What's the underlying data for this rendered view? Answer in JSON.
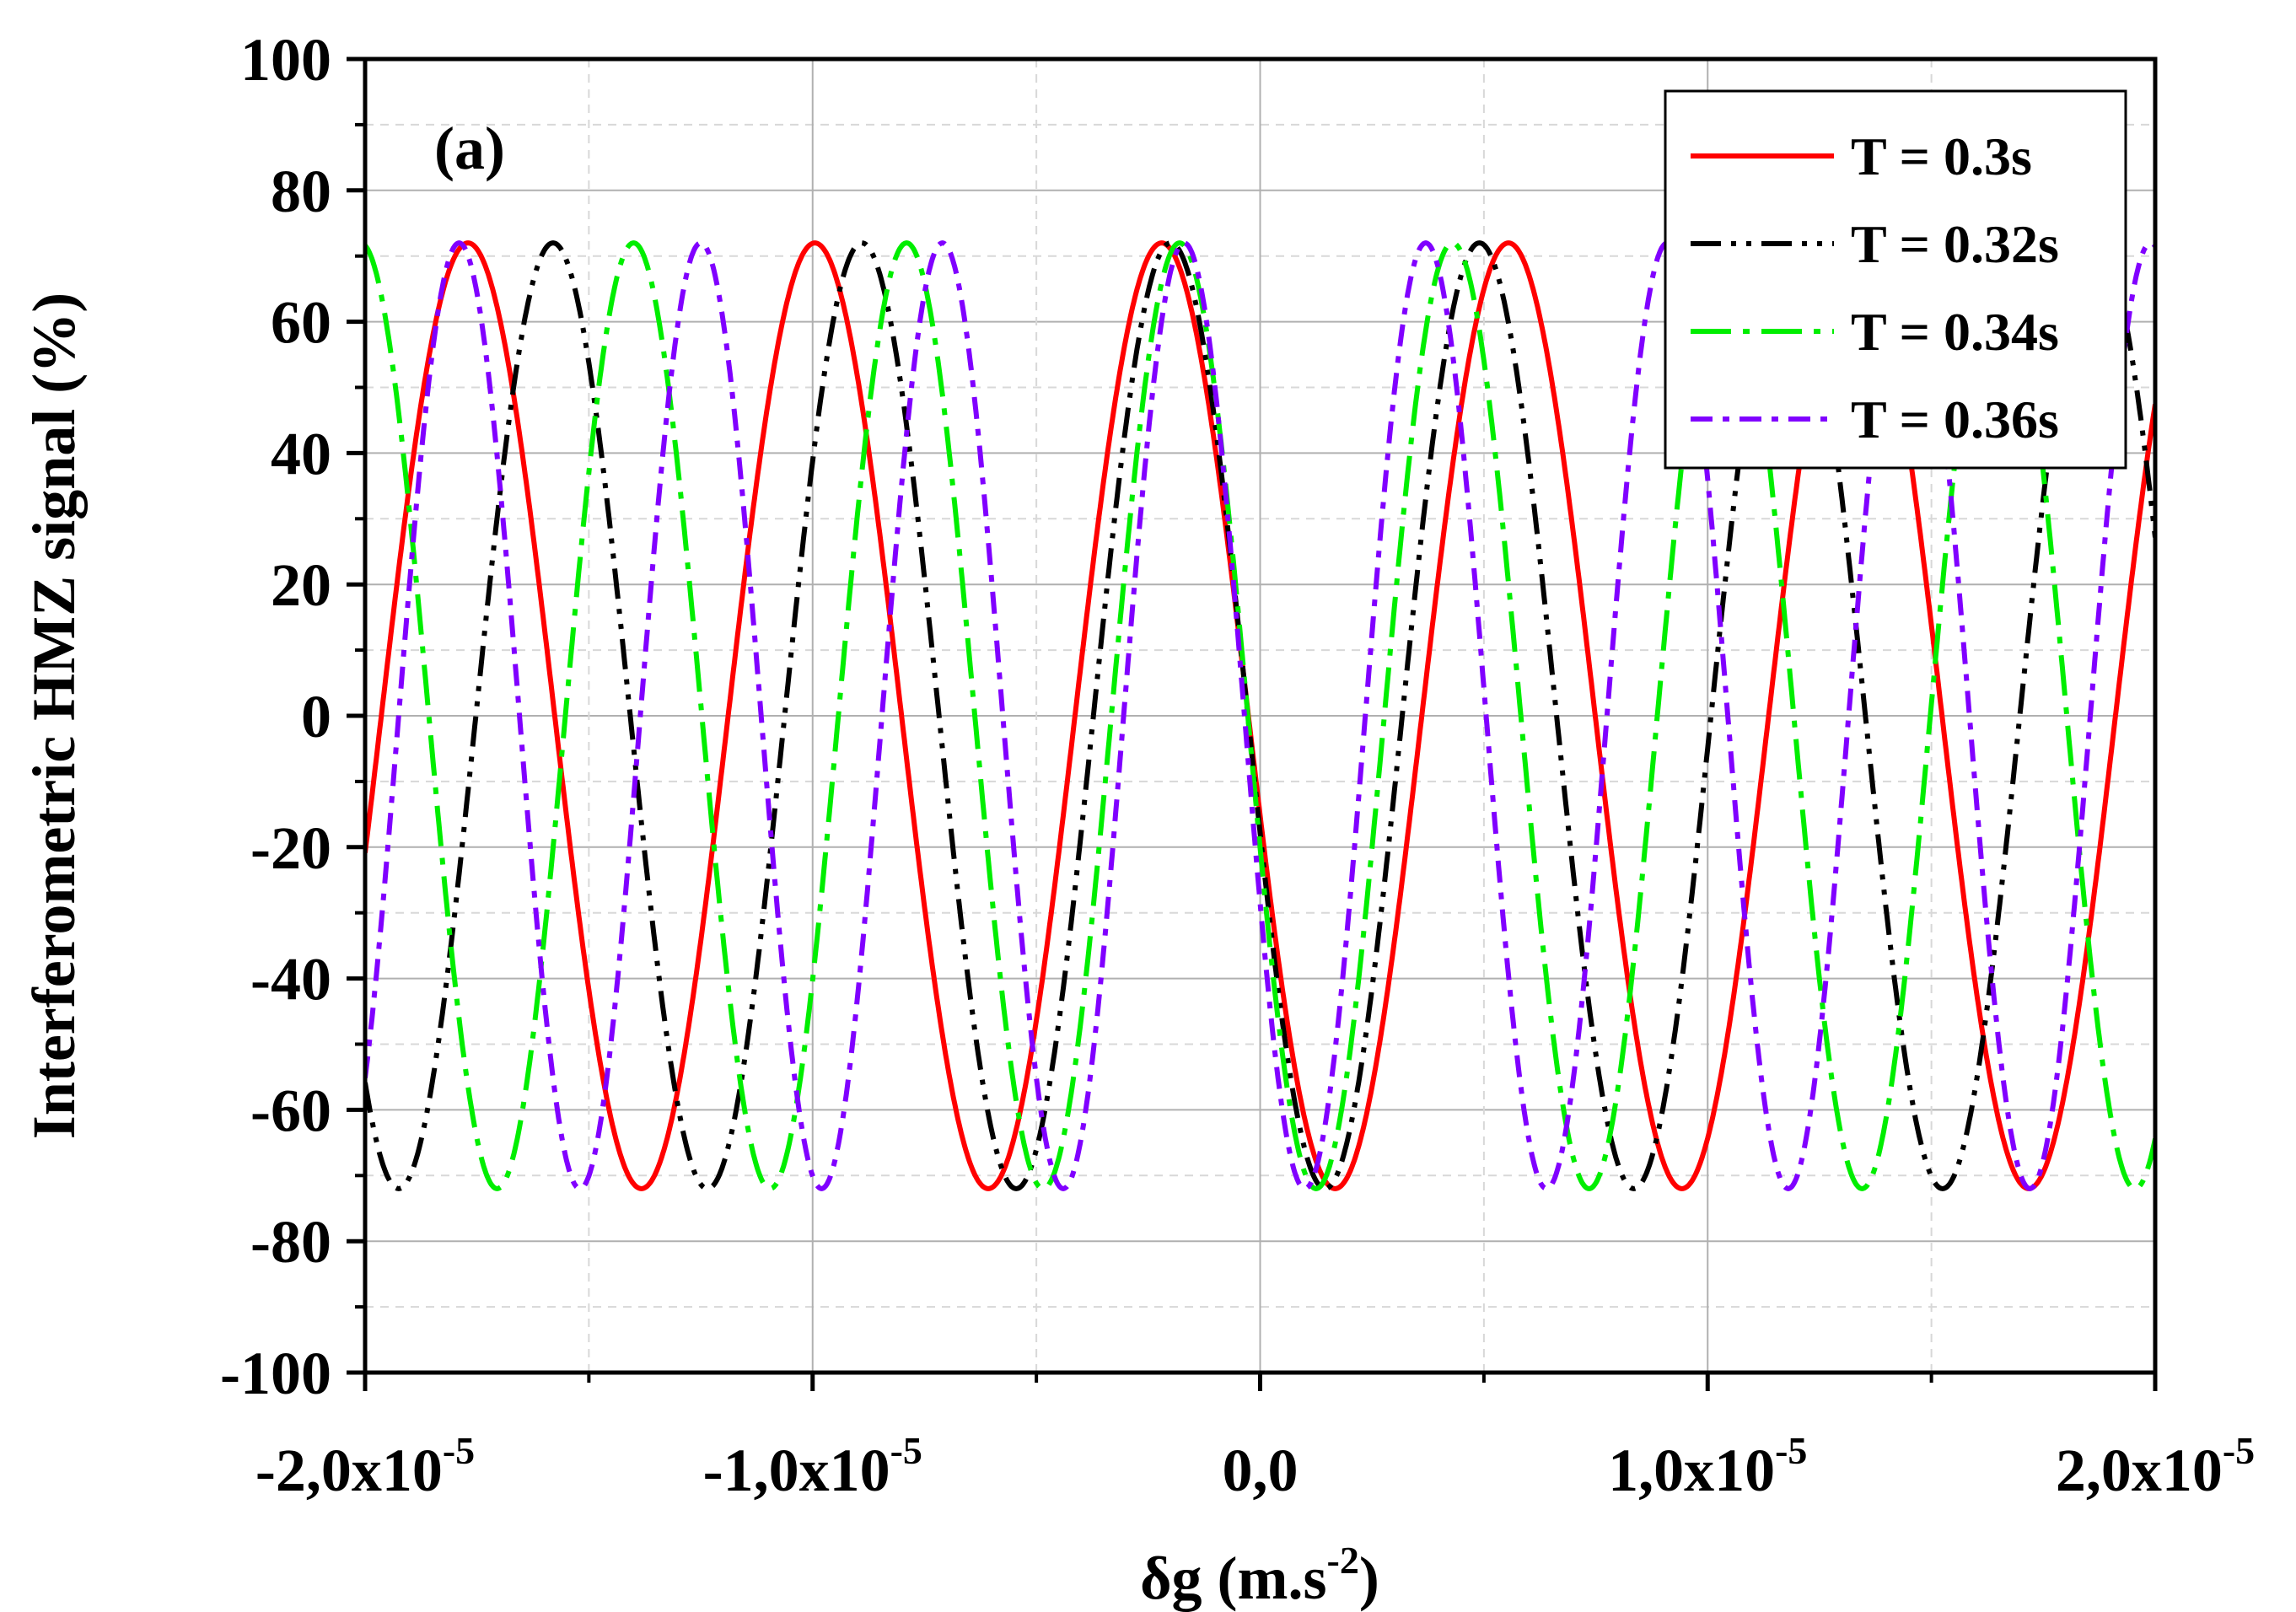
{
  "chart_data": {
    "type": "line",
    "panel_label": "(a)",
    "xlabel": {
      "main": "δg (m.s",
      "sup": "-2",
      "end": ")"
    },
    "ylabel": "Interferometric HMZ signal (%)",
    "xlim": [
      -2e-05,
      2e-05
    ],
    "ylim": [
      -100,
      100
    ],
    "grid": true,
    "legend_position": "top-right",
    "amplitude": 72,
    "x_ticks": [
      {
        "value": -2e-05,
        "mantissa": "-2,0x10",
        "exp": "-5"
      },
      {
        "value": -1e-05,
        "mantissa": "-1,0x10",
        "exp": "-5"
      },
      {
        "value": 0,
        "mantissa": "0,0",
        "exp": ""
      },
      {
        "value": 1e-05,
        "mantissa": "1,0x10",
        "exp": "-5"
      },
      {
        "value": 2e-05,
        "mantissa": "2,0x10",
        "exp": "-5"
      }
    ],
    "y_ticks": [
      {
        "value": 100,
        "label": "100"
      },
      {
        "value": 80,
        "label": "80"
      },
      {
        "value": 60,
        "label": "60"
      },
      {
        "value": 40,
        "label": "40"
      },
      {
        "value": 20,
        "label": "20"
      },
      {
        "value": 0,
        "label": "0"
      },
      {
        "value": -20,
        "label": "-20"
      },
      {
        "value": -40,
        "label": "-40"
      },
      {
        "value": -60,
        "label": "-60"
      },
      {
        "value": -80,
        "label": "-80"
      },
      {
        "value": -100,
        "label": "-100"
      }
    ],
    "series": [
      {
        "name": "T = 0.3s",
        "color": "#ff0000",
        "dash": "solid",
        "peak_x": -2.2e-06,
        "period": 7.75e-06
      },
      {
        "name": "T = 0.32s",
        "color": "#000000",
        "dash": "dashdotdot",
        "peak_x": -2e-06,
        "period": 6.9e-06
      },
      {
        "name": "T = 0.34s",
        "color": "#00ee00",
        "dash": "dashdot",
        "peak_x": -1.8e-06,
        "period": 6.1e-06
      },
      {
        "name": "T = 0.36s",
        "color": "#8000ff",
        "dash": "shortdashdot",
        "peak_x": -1.7e-06,
        "period": 5.4e-06
      }
    ]
  }
}
